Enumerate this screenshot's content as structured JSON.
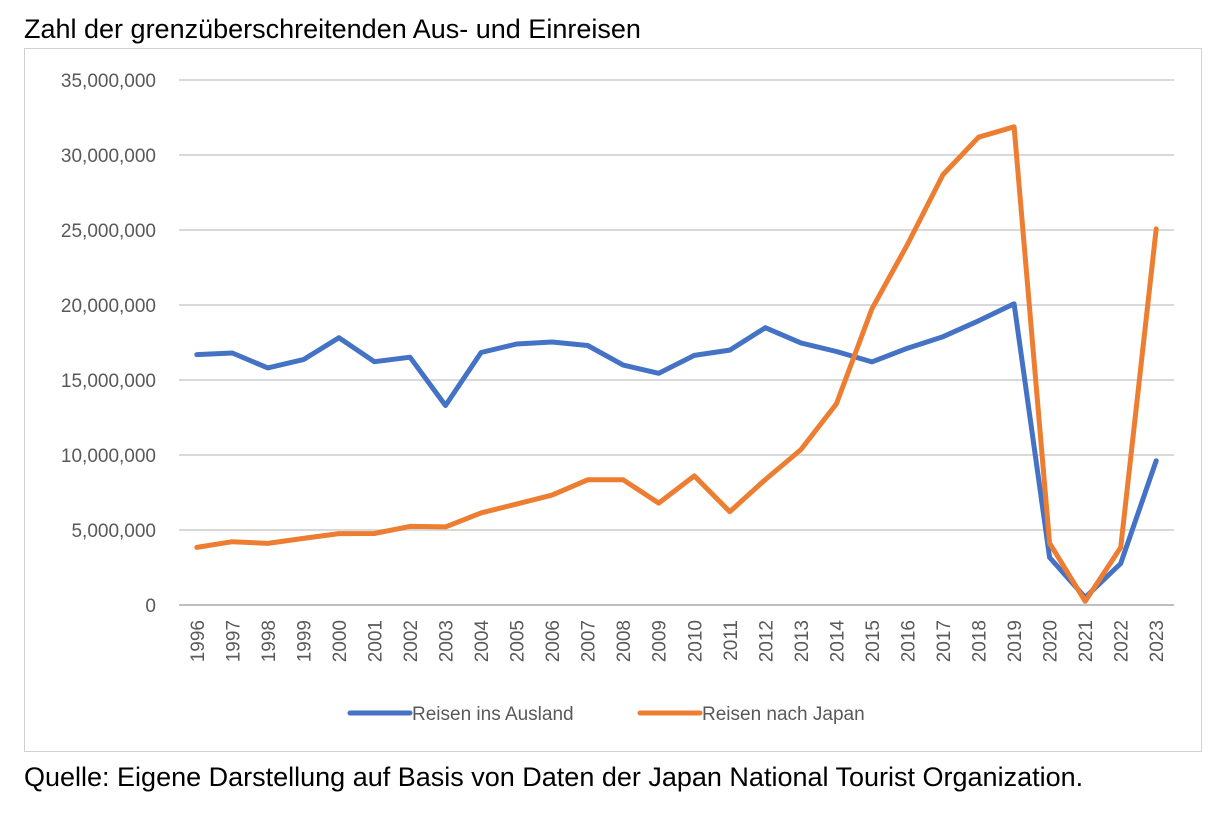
{
  "title": "Zahl der grenzüberschreitenden Aus- und Einreisen",
  "source": "Quelle: Eigene Darstellung auf Basis von Daten der Japan National Tourist Organization.",
  "chart_data": {
    "type": "line",
    "title": "Zahl der grenzüberschreitenden Aus- und Einreisen",
    "xlabel": "",
    "ylabel": "",
    "x": [
      "1996",
      "1997",
      "1998",
      "1999",
      "2000",
      "2001",
      "2002",
      "2003",
      "2004",
      "2005",
      "2006",
      "2007",
      "2008",
      "2009",
      "2010",
      "2011",
      "2012",
      "2013",
      "2014",
      "2015",
      "2016",
      "2017",
      "2018",
      "2019",
      "2020",
      "2021",
      "2022",
      "2023"
    ],
    "ylim": [
      0,
      35000000
    ],
    "yticks": [
      0,
      5000000,
      10000000,
      15000000,
      20000000,
      25000000,
      30000000,
      35000000
    ],
    "ytick_labels": [
      "0",
      "5,000,000",
      "10,000,000",
      "15,000,000",
      "20,000,000",
      "25,000,000",
      "30,000,000",
      "35,000,000"
    ],
    "grid": "horizontal",
    "legend_position": "bottom",
    "series": [
      {
        "name": "Reisen ins Ausland",
        "color": "#4472c4",
        "values": [
          16690000,
          16800000,
          15810000,
          16360000,
          17820000,
          16220000,
          16520000,
          13300000,
          16830000,
          17400000,
          17530000,
          17300000,
          15990000,
          15450000,
          16640000,
          16990000,
          18490000,
          17470000,
          16900000,
          16210000,
          17120000,
          17890000,
          18950000,
          20080000,
          3170000,
          510000,
          2770000,
          9620000
        ]
      },
      {
        "name": "Reisen nach Japan",
        "color": "#ed7d31",
        "values": [
          3840000,
          4220000,
          4110000,
          4440000,
          4760000,
          4770000,
          5240000,
          5210000,
          6140000,
          6730000,
          7330000,
          8350000,
          8350000,
          6790000,
          8610000,
          6220000,
          8360000,
          10360000,
          13410000,
          19740000,
          24040000,
          28690000,
          31190000,
          31880000,
          4120000,
          250000,
          3830000,
          25070000
        ]
      }
    ]
  }
}
